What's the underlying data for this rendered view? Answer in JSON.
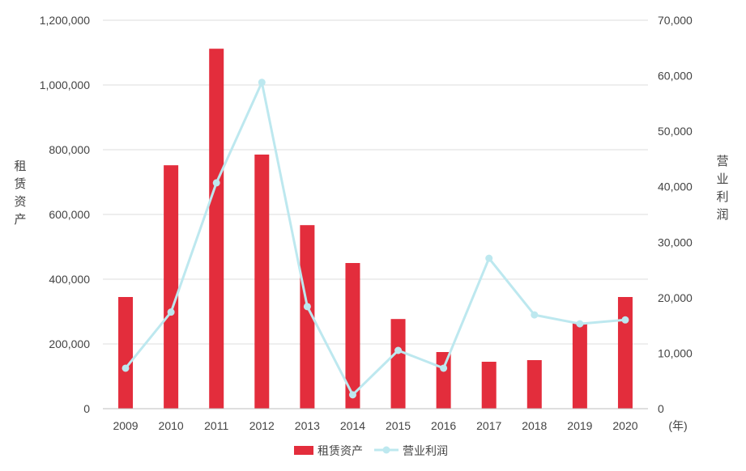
{
  "chart_data": {
    "type": "bar",
    "categories": [
      "2009",
      "2010",
      "2011",
      "2012",
      "2013",
      "2014",
      "2015",
      "2016",
      "2017",
      "2018",
      "2019",
      "2020"
    ],
    "x_unit_label": "(年)",
    "series": [
      {
        "name": "租赁资产",
        "type": "bar",
        "axis": "left",
        "color": "#E32D3C",
        "values": [
          345000,
          752000,
          1112000,
          785000,
          567000,
          450000,
          277000,
          175000,
          145000,
          150000,
          265000,
          345000
        ]
      },
      {
        "name": "营业利润",
        "type": "line",
        "axis": "right",
        "color": "#BDE8EF",
        "values": [
          7300,
          17400,
          40700,
          58800,
          18400,
          2500,
          10500,
          7300,
          27100,
          16900,
          15300,
          16000
        ]
      }
    ],
    "ylabel_left": "租赁资产",
    "ylabel_right": "营业利润",
    "ylim_left": [
      0,
      1200000
    ],
    "ylim_right": [
      0,
      70000
    ],
    "yticks_left": [
      "0",
      "200,000",
      "400,000",
      "600,000",
      "800,000",
      "1,000,000",
      "1,200,000"
    ],
    "yticks_right": [
      "0",
      "10,000",
      "20,000",
      "30,000",
      "40,000",
      "50,000",
      "60,000",
      "70,000"
    ],
    "grid": true,
    "legend_position": "bottom-center"
  }
}
